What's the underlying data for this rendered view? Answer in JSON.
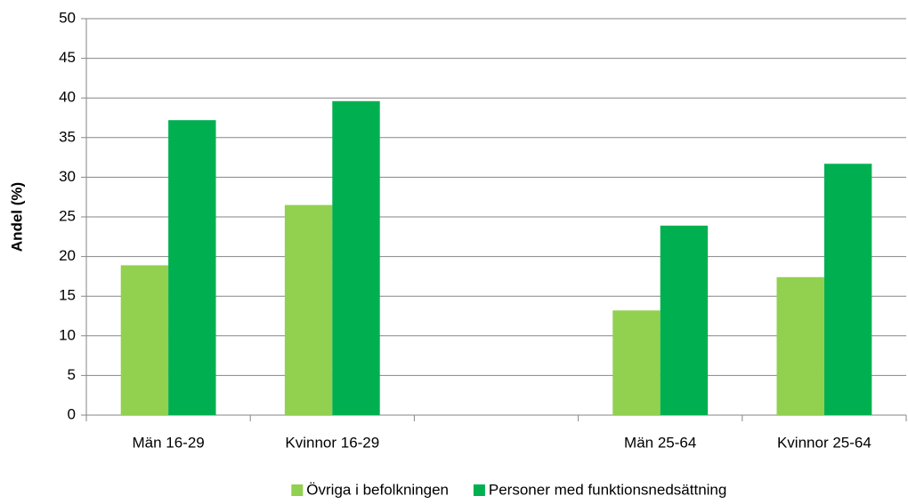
{
  "chart_data": {
    "type": "bar",
    "y_label": "Andel (%)",
    "categories": [
      "Män 16-29",
      "Kvinnor 16-29",
      null,
      "Män 25-64",
      "Kvinnor 25-64"
    ],
    "series": [
      {
        "name": "Övriga i befolkningen",
        "color": "#92d050",
        "values": [
          18.9,
          26.5,
          null,
          13.2,
          17.4
        ]
      },
      {
        "name": "Personer med funktionsnedsättning",
        "color": "#00b050",
        "values": [
          37.2,
          39.6,
          null,
          23.9,
          31.7
        ]
      }
    ],
    "ylim": [
      0,
      50
    ],
    "yticks": [
      0,
      5,
      10,
      15,
      20,
      25,
      30,
      35,
      40,
      45,
      50
    ],
    "grid": true,
    "legend": "bottom"
  }
}
